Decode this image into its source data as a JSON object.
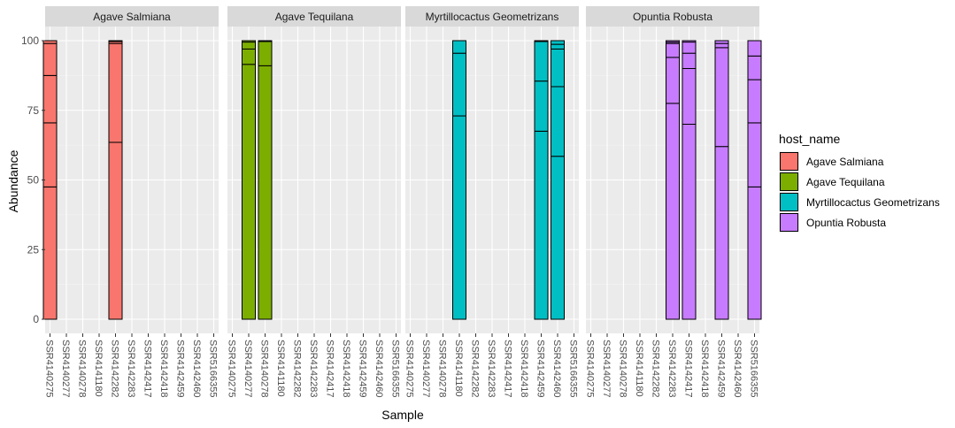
{
  "chart_data": {
    "type": "bar",
    "stacked": true,
    "xlabel": "Sample",
    "ylabel": "Abundance",
    "ylim": [
      0,
      100
    ],
    "y_ticks": [
      0,
      25,
      50,
      75,
      100
    ],
    "categories": [
      "SSR4140275",
      "SSR4140277",
      "SSR4140278",
      "SSR4141180",
      "SSR4142282",
      "SSR4142283",
      "SSR4142417",
      "SSR4142418",
      "SSR4142459",
      "SSR4142460",
      "SSR5166355"
    ],
    "legend": {
      "title": "host_name",
      "position": "right",
      "entries": [
        {
          "name": "Agave Salmiana",
          "color": "#F8766D"
        },
        {
          "name": "Agave Tequilana",
          "color": "#7CAE00"
        },
        {
          "name": "Myrtillocactus Geometrizans",
          "color": "#00BFC4"
        },
        {
          "name": "Opuntia Robusta",
          "color": "#C77CFF"
        }
      ]
    },
    "panels": [
      {
        "title": "Agave Salmiana",
        "color": "#F8766D",
        "categories": [
          "SSR4140275",
          "SSR4140277",
          "SSR4140278",
          "SSR4141180",
          "SSR4142282",
          "SSR4142283",
          "SSR4142417",
          "SSR4142418",
          "SSR4142459",
          "SSR4142460",
          "SSR5166355"
        ],
        "bars": [
          {
            "category": "SSR4140275",
            "breaks": [
              0,
              47.5,
              70.5,
              87.5,
              99,
              100
            ]
          },
          {
            "category": "SSR4142282",
            "breaks": [
              0,
              63.5,
              99,
              99.7,
              100
            ]
          }
        ]
      },
      {
        "title": "Agave Tequilana",
        "color": "#7CAE00",
        "categories": [
          "SSR4140275",
          "SSR4140277",
          "SSR4140278",
          "SSR4141180",
          "SSR4142282",
          "SSR4142283",
          "SSR4142417",
          "SSR4142418",
          "SSR4142459",
          "SSR4142460",
          "SSR5166355"
        ],
        "bars": [
          {
            "category": "SSR4140277",
            "breaks": [
              0,
              91.5,
              97,
              99.5,
              100
            ]
          },
          {
            "category": "SSR4140278",
            "breaks": [
              0,
              91,
              99.7,
              100
            ]
          }
        ]
      },
      {
        "title": "Myrtillocactus Geometrizans",
        "color": "#00BFC4",
        "categories": [
          "SSR4140275",
          "SSR4140277",
          "SSR4140278",
          "SSR4141180",
          "SSR4142282",
          "SSR4142283",
          "SSR4142417",
          "SSR4142418",
          "SSR4142459",
          "SSR4142460",
          "SSR5166355"
        ],
        "bars": [
          {
            "category": "SSR4141180",
            "breaks": [
              0,
              73,
              95.5,
              100
            ]
          },
          {
            "category": "SSR4142459",
            "breaks": [
              0,
              67.5,
              85.5,
              99.7,
              100
            ]
          },
          {
            "category": "SSR4142460",
            "breaks": [
              0,
              58.5,
              83.5,
              97,
              98.7,
              100
            ]
          }
        ]
      },
      {
        "title": "Opuntia Robusta",
        "color": "#C77CFF",
        "categories": [
          "SSR4140275",
          "SSR4140277",
          "SSR4140278",
          "SSR4141180",
          "SSR4142282",
          "SSR4142283",
          "SSR4142417",
          "SSR4142418",
          "SSR4142459",
          "SSR4142460",
          "SSR5166355"
        ],
        "bars": [
          {
            "category": "SSR4142283",
            "breaks": [
              0,
              77.5,
              94,
              99,
              99.5,
              100
            ]
          },
          {
            "category": "SSR4142417",
            "breaks": [
              0,
              70,
              90,
              95.5,
              99.5,
              100
            ]
          },
          {
            "category": "SSR4142459",
            "breaks": [
              0,
              62,
              97.5,
              99,
              100
            ]
          },
          {
            "category": "SSR5166355",
            "breaks": [
              0,
              47.5,
              70.5,
              86,
              94.5,
              100
            ]
          }
        ]
      }
    ]
  }
}
